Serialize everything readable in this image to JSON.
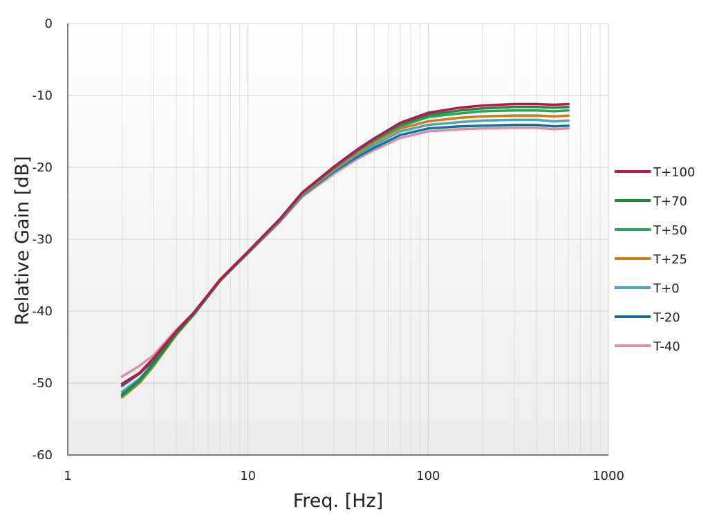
{
  "chart_data": {
    "type": "line",
    "xlabel": "Freq. [Hz]",
    "ylabel": "Relative Gain [dB]",
    "x_scale": "log",
    "xlim": [
      1,
      1000
    ],
    "ylim": [
      -60,
      0
    ],
    "x_ticks": [
      1,
      10,
      100,
      1000
    ],
    "x_tick_labels": [
      "1",
      "10",
      "100",
      "1000"
    ],
    "y_ticks": [
      0,
      -10,
      -20,
      -30,
      -40,
      -50,
      -60
    ],
    "y_tick_labels": [
      "0",
      "-10",
      "-20",
      "-30",
      "-40",
      "-50",
      "-60"
    ],
    "grid": true,
    "legend_position": "right",
    "x": [
      2,
      2.5,
      3,
      4,
      5,
      7,
      10,
      15,
      20,
      30,
      40,
      50,
      70,
      100,
      150,
      200,
      300,
      400,
      500,
      600
    ],
    "series": [
      {
        "name": "T+100",
        "color": "#b5174f",
        "values": [
          -50.1,
          -48.6,
          -46.5,
          -42.8,
          -40.2,
          -35.6,
          -31.7,
          -27.2,
          -23.5,
          -19.9,
          -17.6,
          -16.0,
          -13.8,
          -12.4,
          -11.7,
          -11.4,
          -11.2,
          -11.2,
          -11.3,
          -11.2
        ]
      },
      {
        "name": "T+70",
        "color": "#1b8a3c",
        "values": [
          -51.6,
          -49.6,
          -47.2,
          -43.1,
          -40.4,
          -35.7,
          -31.8,
          -27.2,
          -23.6,
          -20.0,
          -17.7,
          -16.1,
          -14.0,
          -12.7,
          -12.1,
          -11.8,
          -11.6,
          -11.6,
          -11.7,
          -11.6
        ]
      },
      {
        "name": "T+50",
        "color": "#2ea15b",
        "values": [
          -51.8,
          -49.8,
          -47.4,
          -43.2,
          -40.5,
          -35.8,
          -31.8,
          -27.3,
          -23.6,
          -20.1,
          -17.8,
          -16.3,
          -14.3,
          -13.0,
          -12.5,
          -12.2,
          -12.1,
          -12.1,
          -12.2,
          -12.1
        ]
      },
      {
        "name": "T+25",
        "color": "#d17a1a",
        "values": [
          -52.0,
          -50.0,
          -47.6,
          -43.3,
          -40.5,
          -35.8,
          -31.8,
          -27.3,
          -23.7,
          -20.2,
          -18.0,
          -16.5,
          -14.6,
          -13.6,
          -13.1,
          -12.9,
          -12.8,
          -12.8,
          -12.9,
          -12.8
        ]
      },
      {
        "name": "T+0",
        "color": "#4aa6b8",
        "values": [
          -51.2,
          -49.4,
          -47.2,
          -43.1,
          -40.5,
          -35.8,
          -31.9,
          -27.4,
          -23.8,
          -20.4,
          -18.3,
          -16.9,
          -15.0,
          -14.1,
          -13.7,
          -13.5,
          -13.4,
          -13.4,
          -13.6,
          -13.5
        ]
      },
      {
        "name": "T-20",
        "color": "#1a6f96",
        "values": [
          -50.4,
          -48.7,
          -46.8,
          -42.9,
          -40.4,
          -35.8,
          -31.9,
          -27.5,
          -23.9,
          -20.6,
          -18.6,
          -17.3,
          -15.5,
          -14.6,
          -14.3,
          -14.2,
          -14.1,
          -14.1,
          -14.3,
          -14.2
        ]
      },
      {
        "name": "T-40",
        "color": "#e08fa3",
        "values": [
          -49.1,
          -47.6,
          -46.1,
          -42.6,
          -40.2,
          -35.7,
          -32.0,
          -27.6,
          -24.1,
          -20.9,
          -18.9,
          -17.6,
          -15.9,
          -15.0,
          -14.7,
          -14.6,
          -14.5,
          -14.5,
          -14.7,
          -14.6
        ]
      }
    ]
  }
}
